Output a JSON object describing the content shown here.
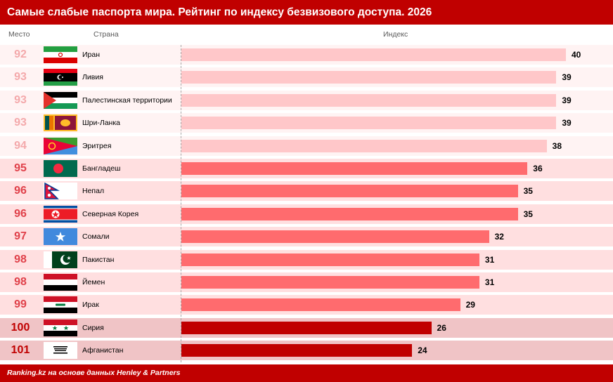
{
  "title": "Самые слабые паспорта мира. Рейтинг по индексу безвизового доступа. 2026",
  "footer": "Ranking.kz на основе данных Henley & Partners",
  "headers": {
    "rank": "Место",
    "country": "Страна",
    "index": "Индекс"
  },
  "colors": {
    "accent": "#c00000",
    "bar_light": "#ffc7c9",
    "bar_mid": "#ff6b6e",
    "bar_dark": "#c00000",
    "row_light": "#fff3f3",
    "row_mid": "#ffdfe0",
    "row_dark": "#f0c4c6",
    "rank_light": "#f4a9ab",
    "rank_mid": "#e0414a",
    "rank_dark": "#c00000"
  },
  "chart_data": {
    "type": "bar",
    "orientation": "horizontal",
    "title": "Самые слабые паспорта мира. Рейтинг по индексу безвизового доступа. 2026",
    "ylabel": "Страна",
    "xlabel": "Индекс",
    "xlim": [
      0,
      40
    ],
    "rows": [
      {
        "rank": "92",
        "country": "Иран",
        "value": 40,
        "tier": "light",
        "flag": "iran-flag-icon"
      },
      {
        "rank": "93",
        "country": "Ливия",
        "value": 39,
        "tier": "light",
        "flag": "libya-flag-icon"
      },
      {
        "rank": "93",
        "country": "Палестинская территории",
        "value": 39,
        "tier": "light",
        "flag": "palestine-flag-icon"
      },
      {
        "rank": "93",
        "country": "Шри-Ланка",
        "value": 39,
        "tier": "light",
        "flag": "sri-lanka-flag-icon"
      },
      {
        "rank": "94",
        "country": "Эритрея",
        "value": 38,
        "tier": "light",
        "flag": "eritrea-flag-icon"
      },
      {
        "rank": "95",
        "country": "Бангладеш",
        "value": 36,
        "tier": "mid",
        "flag": "bangladesh-flag-icon"
      },
      {
        "rank": "96",
        "country": "Непал",
        "value": 35,
        "tier": "mid",
        "flag": "nepal-flag-icon"
      },
      {
        "rank": "96",
        "country": "Северная Корея",
        "value": 35,
        "tier": "mid",
        "flag": "north-korea-flag-icon"
      },
      {
        "rank": "97",
        "country": "Сомали",
        "value": 32,
        "tier": "mid",
        "flag": "somalia-flag-icon"
      },
      {
        "rank": "98",
        "country": "Пакистан",
        "value": 31,
        "tier": "mid",
        "flag": "pakistan-flag-icon"
      },
      {
        "rank": "98",
        "country": "Йемен",
        "value": 31,
        "tier": "mid",
        "flag": "yemen-flag-icon"
      },
      {
        "rank": "99",
        "country": "Ирак",
        "value": 29,
        "tier": "mid",
        "flag": "iraq-flag-icon"
      },
      {
        "rank": "100",
        "country": "Сирия",
        "value": 26,
        "tier": "dark",
        "flag": "syria-flag-icon"
      },
      {
        "rank": "101",
        "country": "Афганистан",
        "value": 24,
        "tier": "dark",
        "flag": "afghanistan-flag-icon"
      }
    ]
  }
}
